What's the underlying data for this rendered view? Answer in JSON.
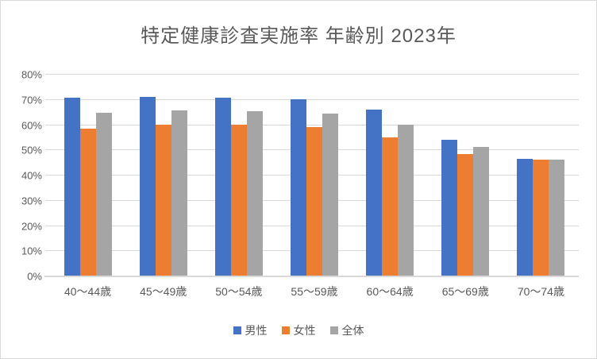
{
  "chart_data": {
    "type": "bar",
    "title": "特定健康診査実施率 年齢別 2023年",
    "categories": [
      "40〜44歳",
      "45〜49歳",
      "50〜54歳",
      "55〜59歳",
      "60〜64歳",
      "65〜69歳",
      "70〜74歳"
    ],
    "series": [
      {
        "name": "男性",
        "color": "#4472C4",
        "values": [
          70.6,
          71.0,
          70.7,
          69.9,
          65.9,
          54.0,
          46.4
        ]
      },
      {
        "name": "女性",
        "color": "#ED7D31",
        "values": [
          58.3,
          60.0,
          59.9,
          58.9,
          54.8,
          48.1,
          45.9
        ]
      },
      {
        "name": "全体",
        "color": "#A5A5A5",
        "values": [
          64.6,
          65.5,
          65.3,
          64.2,
          60.0,
          51.0,
          46.0
        ]
      }
    ],
    "ylim": [
      0,
      80
    ],
    "y_ticks": [
      "80%",
      "70%",
      "60%",
      "50%",
      "40%",
      "30%",
      "20%",
      "10%",
      "0%"
    ],
    "xlabel": "",
    "ylabel": "",
    "grid": true,
    "legend_position": "bottom"
  },
  "colors": {
    "text": "#595959",
    "gridline": "#D9D9D9",
    "background": "#FFFFFF",
    "border": "#D9D9D9"
  }
}
